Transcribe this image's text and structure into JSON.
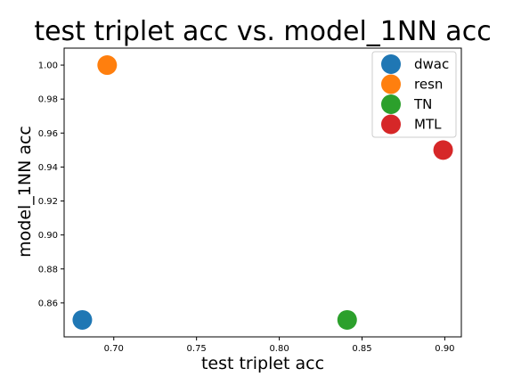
{
  "chart_data": {
    "type": "scatter",
    "title": "test triplet acc vs. model_1NN acc",
    "xlabel": "test triplet acc",
    "ylabel": "model_1NN acc",
    "xlim": [
      0.67,
      0.91
    ],
    "ylim": [
      0.84,
      1.01
    ],
    "xticks": [
      "0.70",
      "0.75",
      "0.80",
      "0.85",
      "0.90"
    ],
    "yticks": [
      "0.86",
      "0.88",
      "0.90",
      "0.92",
      "0.94",
      "0.96",
      "0.98",
      "1.00"
    ],
    "grid": false,
    "legend_position": "top-right",
    "series": [
      {
        "name": "dwac",
        "color": "#1f77b4",
        "x": 0.681,
        "y": 0.85
      },
      {
        "name": "resn",
        "color": "#ff7f0e",
        "x": 0.696,
        "y": 1.0
      },
      {
        "name": "TN",
        "color": "#2ca02c",
        "x": 0.841,
        "y": 0.85
      },
      {
        "name": "MTL",
        "color": "#d62728",
        "x": 0.899,
        "y": 0.95
      }
    ]
  }
}
